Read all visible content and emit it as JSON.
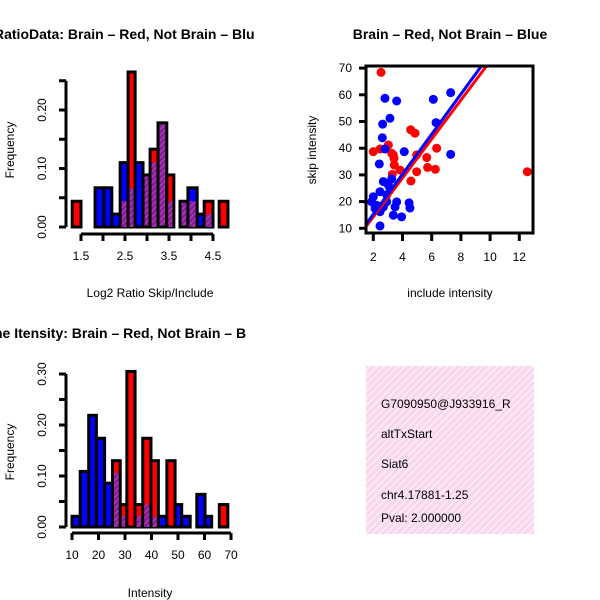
{
  "colors": {
    "red": "#ff0000",
    "blue": "#0000ff",
    "purple": "#8a1a9a",
    "pval": "#c00000",
    "box_bg": "#f8d8ee"
  },
  "chart_data": [
    {
      "type": "bar",
      "subtype": "overlaid-histogram",
      "title": "RatioData: Brain – Red, Not Brain – Blu",
      "xlabel": "Log2 Ratio Skip/Include",
      "ylabel": "Frequency",
      "xticks": [
        1.5,
        2.5,
        3.5,
        4.5
      ],
      "xtick_labels": [
        "1.5",
        "2.5",
        "3.5",
        "4.5"
      ],
      "xtick_minor": [
        1.5,
        2.0,
        2.5,
        3.0,
        3.5,
        4.0,
        4.5
      ],
      "yticks": [
        0,
        0.05,
        0.1,
        0.15,
        0.2,
        0.25
      ],
      "ytick_labels": [
        "0.00",
        "0.10",
        "0.20"
      ],
      "ytick_label_values": [
        0,
        0.1,
        0.2
      ],
      "bin_edges": [
        1.3,
        1.5,
        1.82,
        2.02,
        2.2,
        2.39,
        2.57,
        2.73,
        2.91,
        3.07,
        3.25,
        3.45,
        3.61,
        3.75,
        3.93,
        4.14,
        4.3,
        4.5,
        4.64,
        4.84
      ],
      "series": [
        {
          "name": "Brain",
          "color": "red",
          "values": [
            0.044,
            0,
            0,
            0,
            0,
            0.044,
            0.265,
            0,
            0.089,
            0.133,
            0.178,
            0.089,
            0,
            0.044,
            0.044,
            0,
            0.044,
            0,
            0.044
          ]
        },
        {
          "name": "Not Brain",
          "color": "blue",
          "values": [
            0,
            0,
            0.067,
            0.067,
            0.022,
            0.11,
            0.067,
            0.11,
            0.089,
            0.11,
            0.178,
            0.044,
            0,
            0.044,
            0.067,
            0.022,
            0.022,
            0,
            0
          ]
        }
      ]
    },
    {
      "type": "scatter",
      "title": "Brain – Red, Not Brain – Blue",
      "xlabel": "include intensity",
      "ylabel": "skip intensity",
      "xlim": [
        1.5,
        12.5
      ],
      "ylim": [
        8.4,
        70
      ],
      "xticks": [
        2,
        4,
        6,
        8,
        10,
        12
      ],
      "xtick_labels": [
        "2",
        "4",
        "6",
        "8",
        "10",
        "12"
      ],
      "yticks": [
        10,
        20,
        30,
        40,
        50,
        60,
        70
      ],
      "ytick_labels": [
        "10",
        "20",
        "30",
        "40",
        "50",
        "60",
        "70"
      ],
      "series": [
        {
          "name": "Brain",
          "color": "red",
          "x": [
            2.53,
            4.56,
            4.86,
            3.03,
            2.0,
            2.46,
            3.37,
            3.26,
            3.42,
            3.44,
            3.83,
            3.3,
            4.97,
            5.66,
            6.34,
            5.72,
            6.25,
            4.97,
            4.58,
            12.55
          ],
          "y": [
            68.4,
            46.9,
            45.6,
            41.2,
            38.7,
            39.7,
            37.5,
            38.1,
            36.2,
            33.7,
            31.8,
            30.2,
            37.5,
            36.5,
            40.0,
            32.8,
            32.1,
            31.2,
            27.7,
            31.2
          ],
          "fit": {
            "intercept": -0.3,
            "slope": 7.29
          }
        },
        {
          "name": "Not Brain",
          "color": "blue",
          "x": [
            7.3,
            2.8,
            3.6,
            6.11,
            3.14,
            2.64,
            6.3,
            2.62,
            2.8,
            4.12,
            7.3,
            2.41,
            3.26,
            2.69,
            3.03,
            2.46,
            2.0,
            1.89,
            2.12,
            2.92,
            3.6,
            3.49,
            2.46,
            3.37,
            3.94,
            4.45,
            4.51,
            2.46,
            2.92,
            3.14,
            2.23,
            2.69
          ],
          "y": [
            60.8,
            58.7,
            57.7,
            58.3,
            51.2,
            49.0,
            49.6,
            43.9,
            39.7,
            38.7,
            37.7,
            34.1,
            28.5,
            27.5,
            26.2,
            23.7,
            21.8,
            19.9,
            17.4,
            19.9,
            19.9,
            18.0,
            16.2,
            14.9,
            14.3,
            19.5,
            17.6,
            10.9,
            22.5,
            25.0,
            18.6,
            18.0
          ],
          "fit": {
            "intercept": 0.25,
            "slope": 7.5
          }
        }
      ]
    },
    {
      "type": "bar",
      "subtype": "overlaid-histogram",
      "title": "ne Itensity: Brain – Red, Not Brain – B",
      "xlabel": "Intensity",
      "ylabel": "Frequency",
      "xticks": [
        10,
        20,
        30,
        40,
        50,
        60,
        70
      ],
      "xtick_labels": [
        "10",
        "20",
        "30",
        "40",
        "50",
        "60",
        "70"
      ],
      "yticks": [
        0,
        0.05,
        0.1,
        0.15,
        0.2,
        0.25,
        0.3
      ],
      "ytick_labels": [
        "0.00",
        "0.10",
        "0.20",
        "0.30"
      ],
      "ytick_label_values": [
        0,
        0.1,
        0.2,
        0.3
      ],
      "bin_edges": [
        10,
        13.1,
        16.3,
        19.2,
        22.3,
        25.3,
        28.2,
        30.7,
        33.8,
        36.7,
        39.8,
        42.6,
        45.8,
        48.9,
        51.4,
        54.6,
        57.1,
        60.2,
        62.7,
        65.6,
        68.8
      ],
      "series": [
        {
          "name": "Brain",
          "color": "red",
          "values": [
            0,
            0,
            0,
            0,
            0,
            0.13,
            0.044,
            0.305,
            0.044,
            0.174,
            0.13,
            0,
            0.13,
            0,
            0,
            0,
            0,
            0,
            0,
            0.044
          ]
        },
        {
          "name": "Not Brain",
          "color": "blue",
          "values": [
            0.021,
            0.109,
            0.219,
            0.174,
            0.086,
            0.106,
            0.021,
            0,
            0.021,
            0.044,
            0.021,
            0.021,
            0,
            0.044,
            0.021,
            0,
            0.064,
            0.021,
            0,
            0
          ]
        }
      ]
    }
  ],
  "info_box": {
    "lines": [
      "G7090950@J933916_R",
      "altTxStart",
      "Siat6",
      "chr4.17881-1.25"
    ],
    "pval": "Pval: 2.000000"
  }
}
